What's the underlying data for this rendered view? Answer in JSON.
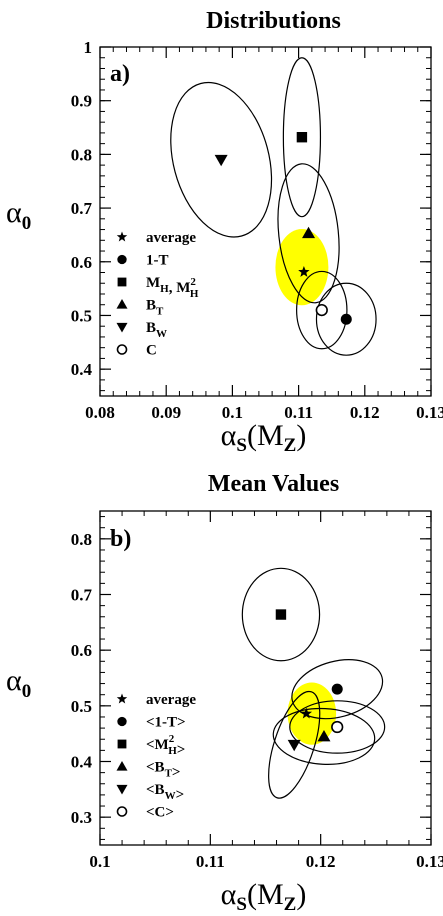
{
  "chart_data": [
    {
      "type": "scatter",
      "title": "Distributions",
      "panel_label": "a)",
      "xlabel": {
        "main": "α",
        "sub": "S",
        "suffix_open": "(M",
        "suffix_sub": "Z",
        "suffix_close": ")"
      },
      "ylabel": {
        "main": "α",
        "sub": "0"
      },
      "xlim": [
        0.08,
        0.13
      ],
      "ylim": [
        0.35,
        1.0
      ],
      "xticks": [
        "0.08",
        "0.09",
        "0.1",
        "0.11",
        "0.12",
        "0.13"
      ],
      "xtick_values": [
        0.08,
        0.09,
        0.1,
        0.11,
        0.12,
        0.13
      ],
      "yticks": [
        "0.4",
        "0.5",
        "0.6",
        "0.7",
        "0.8",
        "0.9",
        "1"
      ],
      "ytick_values": [
        0.4,
        0.5,
        0.6,
        0.7,
        0.8,
        0.9,
        1.0
      ],
      "average_region": {
        "x": 0.1105,
        "y": 0.59,
        "rx": 0.004,
        "ry": 0.071,
        "color": "#ffff00"
      },
      "series": [
        {
          "name": "average",
          "marker": "star",
          "x": 0.1108,
          "y": 0.581
        },
        {
          "name": "1-T",
          "marker": "circle-filled",
          "x": 0.1172,
          "y": 0.493,
          "ellipse": {
            "rx": 0.0045,
            "ry": 0.067,
            "angle": 0
          }
        },
        {
          "name": "M_H, M_H^2",
          "marker": "square",
          "x": 0.1105,
          "y": 0.832,
          "ellipse": {
            "rx": 0.0028,
            "ry": 0.148,
            "angle": 0
          }
        },
        {
          "name": "B_T",
          "marker": "triangle-up",
          "x": 0.1115,
          "y": 0.653,
          "ellipse": {
            "rx": 0.0045,
            "ry": 0.13,
            "angle": -6
          }
        },
        {
          "name": "B_W",
          "marker": "triangle-down",
          "x": 0.0983,
          "y": 0.79,
          "ellipse": {
            "rx": 0.0072,
            "ry": 0.147,
            "angle": -15
          }
        },
        {
          "name": "C",
          "marker": "circle-open",
          "x": 0.1135,
          "y": 0.51,
          "ellipse": {
            "rx": 0.0038,
            "ry": 0.072,
            "angle": 0
          }
        }
      ],
      "legend": [
        {
          "marker": "star",
          "label": "average"
        },
        {
          "marker": "circle-filled",
          "label": "1-T"
        },
        {
          "marker": "square",
          "label": "M",
          "sub": "H",
          "label2": ", M",
          "sup2": "2",
          "sub2": "H"
        },
        {
          "marker": "triangle-up",
          "label": "B",
          "sub": "T"
        },
        {
          "marker": "triangle-down",
          "label": "B",
          "sub": "W"
        },
        {
          "marker": "circle-open",
          "label": "C"
        }
      ]
    },
    {
      "type": "scatter",
      "title": "Mean Values",
      "panel_label": "b)",
      "xlabel": {
        "main": "α",
        "sub": "S",
        "suffix_open": "(M",
        "suffix_sub": "Z",
        "suffix_close": ")"
      },
      "ylabel": {
        "main": "α",
        "sub": "0"
      },
      "xlim": [
        0.1,
        0.13
      ],
      "ylim": [
        0.25,
        0.85
      ],
      "xticks": [
        "0.1",
        "0.11",
        "0.12",
        "0.13"
      ],
      "xtick_values": [
        0.1,
        0.11,
        0.12,
        0.13
      ],
      "yticks": [
        "0.3",
        "0.4",
        "0.5",
        "0.6",
        "0.7",
        "0.8"
      ],
      "ytick_values": [
        0.3,
        0.4,
        0.5,
        0.6,
        0.7,
        0.8
      ],
      "average_region": {
        "x": 0.1192,
        "y": 0.486,
        "rx": 0.0022,
        "ry": 0.056,
        "color": "#ffff00"
      },
      "series": [
        {
          "name": "average",
          "marker": "star",
          "x": 0.1187,
          "y": 0.486
        },
        {
          "name": "<1-T>",
          "marker": "circle-filled",
          "x": 0.1215,
          "y": 0.53,
          "ellipse": {
            "rx": 0.0042,
            "ry": 0.05,
            "angle": -15
          }
        },
        {
          "name": "<M_H^2>",
          "marker": "square",
          "x": 0.1164,
          "y": 0.664,
          "ellipse": {
            "rx": 0.0035,
            "ry": 0.083,
            "angle": 0
          }
        },
        {
          "name": "<B_T>",
          "marker": "triangle-up",
          "x": 0.1203,
          "y": 0.445,
          "ellipse": {
            "rx": 0.0046,
            "ry": 0.05,
            "angle": 3
          }
        },
        {
          "name": "<B_W>",
          "marker": "triangle-down",
          "x": 0.1176,
          "y": 0.43,
          "ellipse": {
            "rx": 0.0018,
            "ry": 0.1,
            "angle": 18
          }
        },
        {
          "name": "<C>",
          "marker": "circle-open",
          "x": 0.1215,
          "y": 0.462,
          "ellipse": {
            "rx": 0.0043,
            "ry": 0.047,
            "angle": 0
          }
        }
      ],
      "legend": [
        {
          "marker": "star",
          "label": "average"
        },
        {
          "marker": "circle-filled",
          "label": "<1-T>"
        },
        {
          "marker": "square",
          "label": "<M",
          "sup": "2",
          "sub": "H",
          "label_end": ">"
        },
        {
          "marker": "triangle-up",
          "label": "<B",
          "sub": "T",
          "label_end": ">"
        },
        {
          "marker": "triangle-down",
          "label": "<B",
          "sub": "W",
          "label_end": ">"
        },
        {
          "marker": "circle-open",
          "label": "<C>"
        }
      ]
    }
  ]
}
